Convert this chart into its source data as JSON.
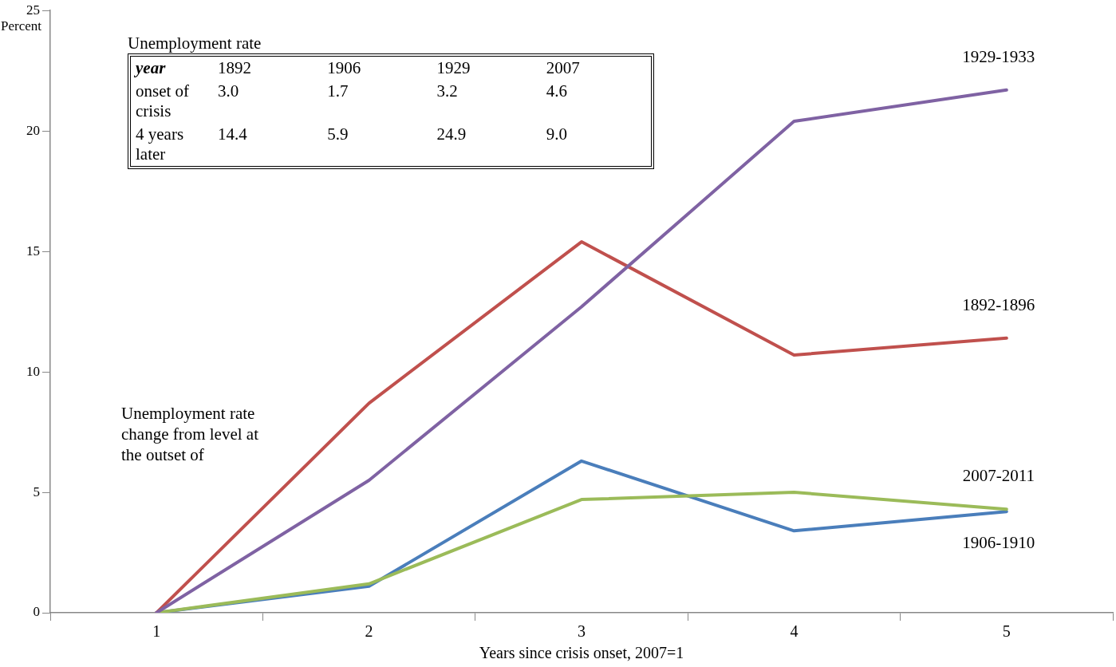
{
  "chart_data": {
    "type": "line",
    "xlabel": "Years since crisis onset, 2007=1",
    "ylabel": "Percent",
    "categories": [
      "1",
      "2",
      "3",
      "4",
      "5"
    ],
    "series": [
      {
        "name": "1929-1933",
        "color": "#7f62a3",
        "values": [
          0,
          5.5,
          12.7,
          20.4,
          21.7
        ]
      },
      {
        "name": "1892-1896",
        "color": "#c0504d",
        "values": [
          0,
          8.7,
          15.4,
          10.7,
          11.4
        ]
      },
      {
        "name": "2007-2011",
        "color": "#9bbb59",
        "values": [
          0,
          1.2,
          4.7,
          5.0,
          4.3
        ]
      },
      {
        "name": "1906-1910",
        "color": "#4a7ebb",
        "values": [
          0,
          1.1,
          6.3,
          3.4,
          4.2
        ]
      }
    ],
    "ylim": [
      0,
      25
    ],
    "yticks": [
      0,
      5,
      10,
      15,
      20,
      25
    ],
    "grid": false,
    "legend": false,
    "marker": "none",
    "line_style": "solid",
    "annotations": [
      "Unemployment rate",
      "year\t1892\t1906\t1929\t2007",
      "onset of crisis\t3.0\t1.7\t3.2\t4.6",
      "4 years later\t14.4\t5.9\t24.9\t9.0",
      "Unemployment rate change from level at the outset of"
    ]
  }
}
